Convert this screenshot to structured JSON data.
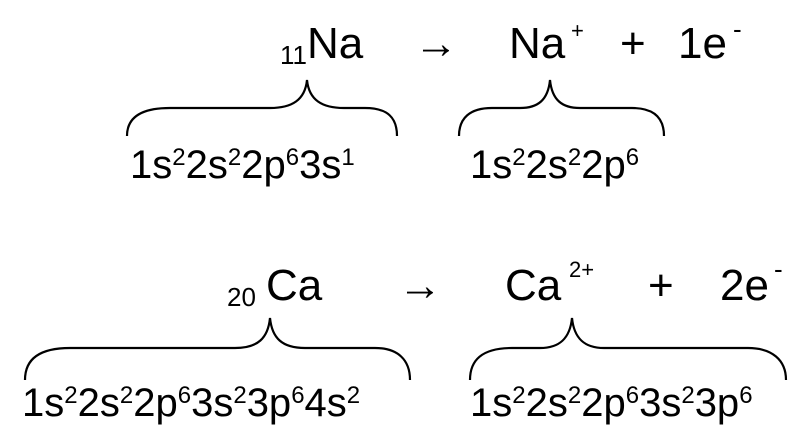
{
  "reactions": [
    {
      "atomic_number": "11",
      "element": "Na",
      "arrow": "→",
      "ion_symbol": "Na",
      "ion_charge": "+",
      "plus": "+",
      "electrons": "1e",
      "electron_charge": "-",
      "reactant_config": [
        [
          "1s",
          "2"
        ],
        [
          "2s",
          "2"
        ],
        [
          "2p",
          "6"
        ],
        [
          "3s",
          "1"
        ]
      ],
      "product_config": [
        [
          "1s",
          "2"
        ],
        [
          "2s",
          "2"
        ],
        [
          "2p",
          "6"
        ]
      ]
    },
    {
      "atomic_number": "20",
      "element": "Ca",
      "arrow": "→",
      "ion_symbol": "Ca",
      "ion_charge": "2+",
      "plus": "+",
      "electrons": "2e",
      "electron_charge": "-",
      "reactant_config": [
        [
          "1s",
          "2"
        ],
        [
          "2s",
          "2"
        ],
        [
          "2p",
          "6"
        ],
        [
          "3s",
          "2"
        ],
        [
          "3p",
          "6"
        ],
        [
          "4s",
          "2"
        ]
      ],
      "product_config": [
        [
          "1s",
          "2"
        ],
        [
          "2s",
          "2"
        ],
        [
          "2p",
          "6"
        ],
        [
          "3s",
          "2"
        ],
        [
          "3p",
          "6"
        ]
      ]
    }
  ]
}
